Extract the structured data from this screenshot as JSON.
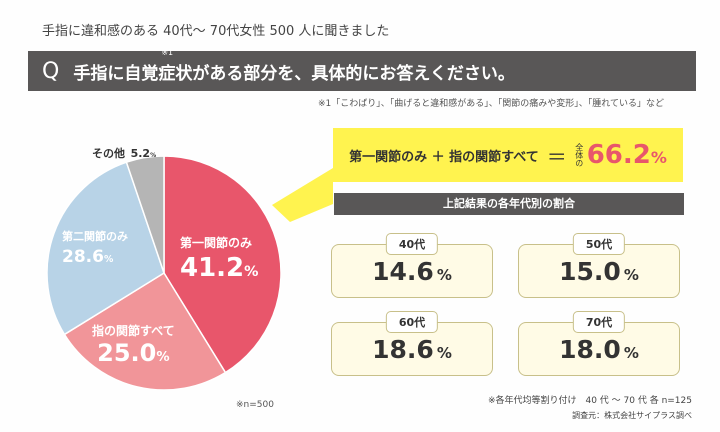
{
  "header": {
    "subtitle": "手指に違和感のある 40代〜 70代女性 500 人に聞きました",
    "q_letter": "Q",
    "question": "手指に自覚症状がある部分を、具体的にお答えください。",
    "question_mark": "※1",
    "footnote": "※1「こわばり」、「曲げると違和感がある」、「関節の痛みや変形」、「腫れている」など"
  },
  "chart_data": {
    "type": "pie",
    "categories": [
      "第一関節のみ",
      "指の関節すべて",
      "第二関節のみ",
      "その他"
    ],
    "values": [
      41.2,
      25.0,
      28.6,
      5.2
    ],
    "value_labels": [
      "41.2",
      "25.0",
      "28.6",
      "5.2"
    ],
    "unit": "%",
    "colors": [
      "#e8566b",
      "#f19599",
      "#b8d3e7",
      "#b5b5b5"
    ],
    "note": "※n=500"
  },
  "callout": {
    "text": "第一関節のみ ＋ 指の関節すべて",
    "equals": "＝",
    "whole": "全体の",
    "value": "66.2",
    "unit": "%"
  },
  "breakdown": {
    "title": "上記結果の各年代別の割合",
    "items": [
      {
        "age": "40代",
        "value": "14.6",
        "unit": "%"
      },
      {
        "age": "50代",
        "value": "15.0",
        "unit": "%"
      },
      {
        "age": "60代",
        "value": "18.6",
        "unit": "%"
      },
      {
        "age": "70代",
        "value": "18.0",
        "unit": "%"
      }
    ]
  },
  "notes": {
    "sample": "※各年代均等割り付け　40 代 〜 70 代  各 n=125",
    "source": "調査元：株式会社サイプラス調べ"
  }
}
